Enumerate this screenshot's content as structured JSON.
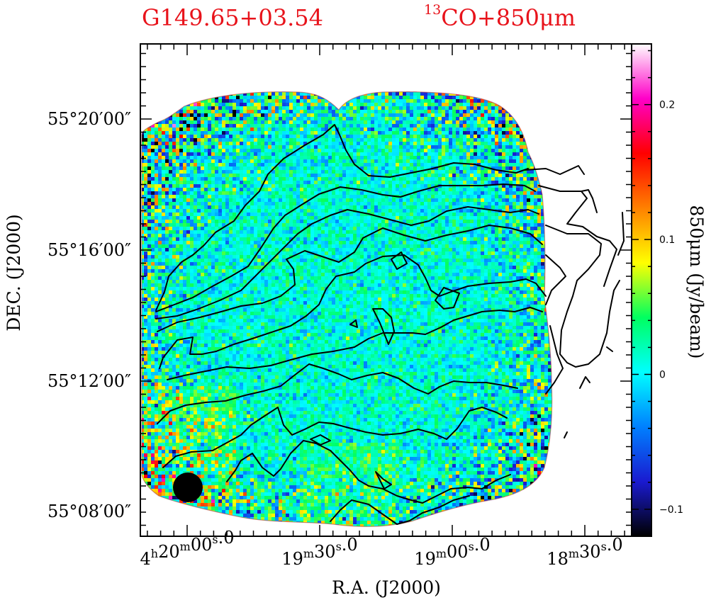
{
  "titles": {
    "source": "G149.65+03.54",
    "tracer_sup": "13",
    "tracer": "CO+850μm"
  },
  "chart_data": {
    "type": "heatmap",
    "xlabel": "R.A. (J2000)",
    "ylabel": "DEC. (J2000)",
    "colorbar_label": "850μm (Jy/beam)",
    "colorbar_range": [
      -0.12,
      0.245
    ],
    "colorbar_ticks": [
      {
        "value": 0.2,
        "label": "0.2"
      },
      {
        "value": 0.1,
        "label": "0.1"
      },
      {
        "value": 0,
        "label": "0"
      },
      {
        "value": -0.1,
        "label": "−0.1"
      }
    ],
    "colormap": [
      "#000000",
      "#1a1ad0",
      "#0080ff",
      "#00ffff",
      "#00ff60",
      "#ffff00",
      "#ff8000",
      "#ff0000",
      "#ff00c8",
      "#ffffff"
    ],
    "x_tick_labels": [
      {
        "h": "4",
        "hsup": "h",
        "m": "20",
        "msup": "m",
        "s": "00",
        "ssup": "s",
        "frac": ".0"
      },
      {
        "h": "",
        "hsup": "",
        "m": "19",
        "msup": "m",
        "s": "30",
        "ssup": "s",
        "frac": ".0"
      },
      {
        "h": "",
        "hsup": "",
        "m": "19",
        "msup": "m",
        "s": "00",
        "ssup": "s",
        "frac": ".0"
      },
      {
        "h": "",
        "hsup": "",
        "m": "18",
        "msup": "m",
        "s": "30",
        "ssup": "s",
        "frac": ".0"
      }
    ],
    "y_tick_labels": [
      "55°20′00″",
      "55°16′00″",
      "55°12′00″",
      "55°08′00″"
    ],
    "beam": "filled-circle",
    "contours": "13CO integrated intensity",
    "grid": false
  }
}
